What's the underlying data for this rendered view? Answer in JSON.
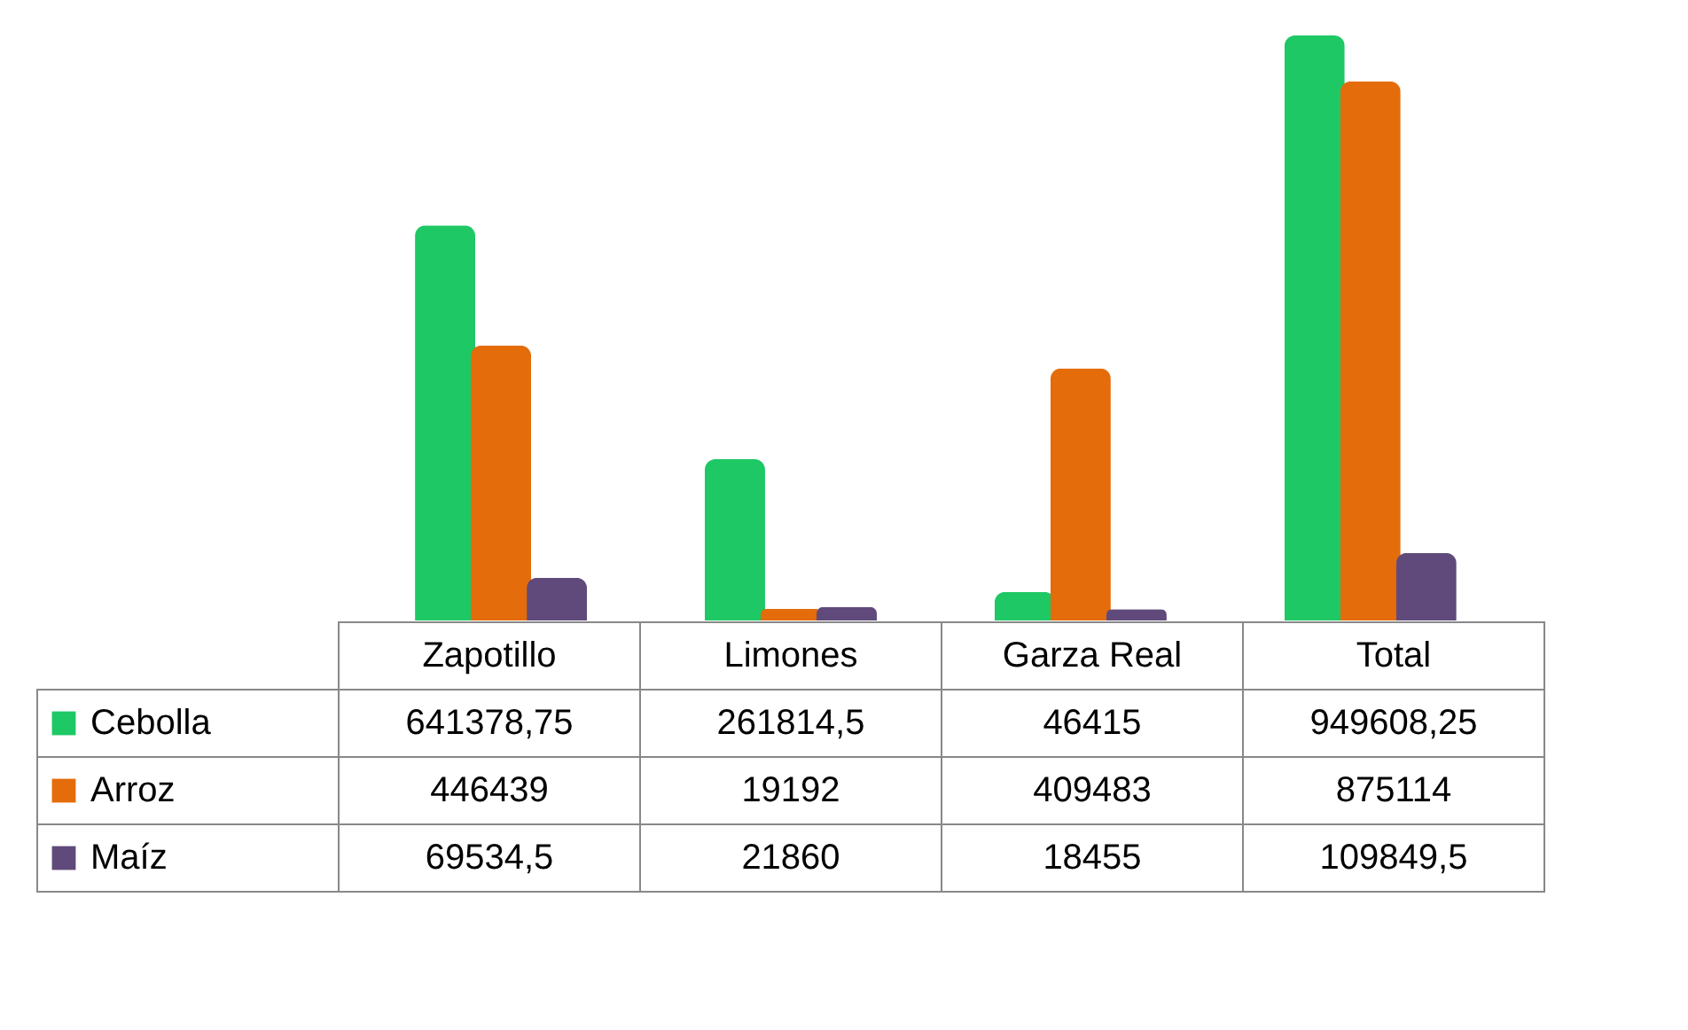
{
  "chart_data": {
    "type": "bar",
    "categories": [
      "Zapotillo",
      "Limones",
      "Garza Real",
      "Total"
    ],
    "series": [
      {
        "name": "Cebolla",
        "color": "#1ec865",
        "values": [
          641378.75,
          261814.5,
          46415,
          949608.25
        ],
        "value_labels": [
          "641378,75",
          "261814,5",
          "46415",
          "949608,25"
        ]
      },
      {
        "name": "Arroz",
        "color": "#e46c0a",
        "values": [
          446439,
          19192,
          409483,
          875114
        ],
        "value_labels": [
          "446439",
          "19192",
          "409483",
          "875114"
        ]
      },
      {
        "name": "Maíz",
        "color": "#604a7b",
        "values": [
          69534.5,
          21860,
          18455,
          109849.5
        ],
        "value_labels": [
          "69534,5",
          "21860",
          "18455",
          "109849,5"
        ]
      }
    ],
    "legend": "bottom left",
    "grid": false
  }
}
